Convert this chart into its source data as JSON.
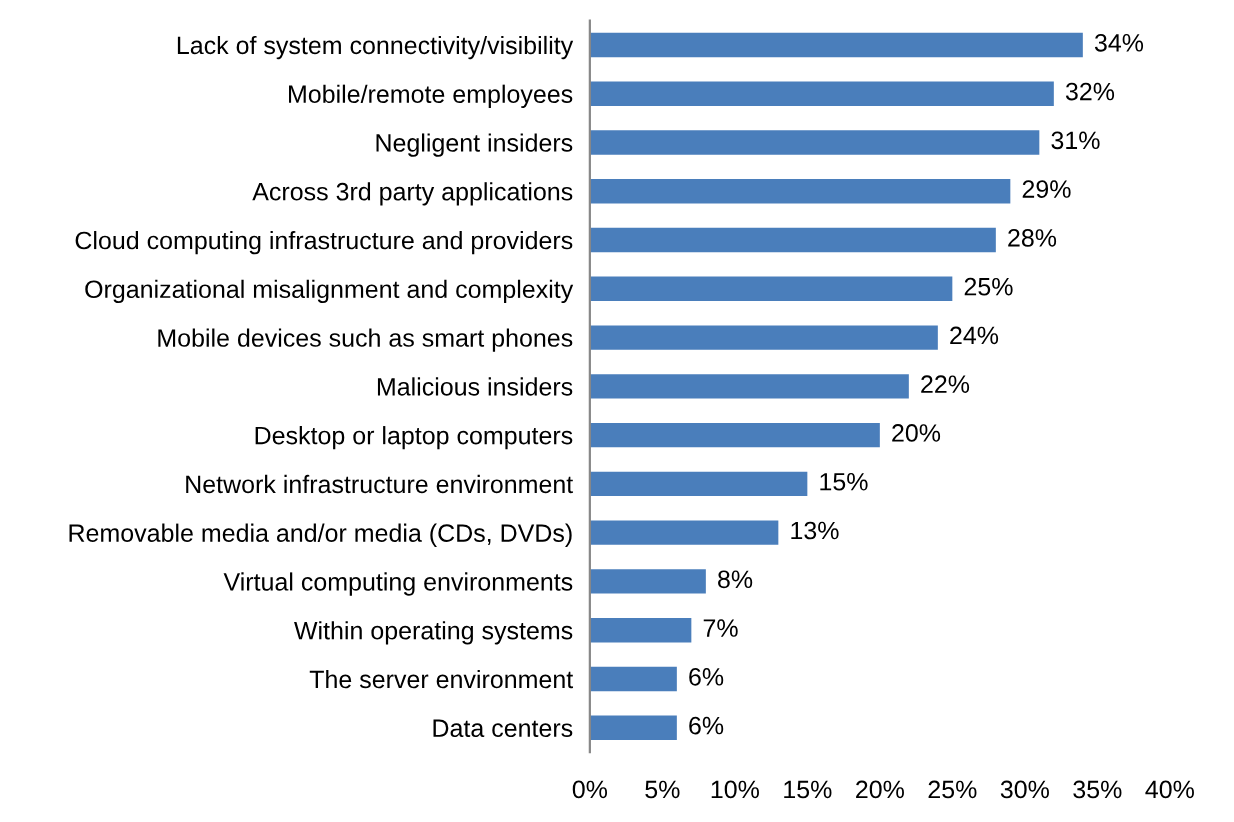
{
  "chart_data": {
    "type": "bar",
    "orientation": "horizontal",
    "categories": [
      "Lack of system connectivity/visibility",
      "Mobile/remote employees",
      "Negligent insiders",
      "Across 3rd party applications",
      "Cloud computing infrastructure and providers",
      "Organizational misalignment and complexity",
      "Mobile devices such as smart phones",
      "Malicious insiders",
      "Desktop or laptop computers",
      "Network infrastructure environment",
      "Removable media and/or media (CDs, DVDs)",
      "Virtual computing environments",
      "Within operating systems",
      "The server environment",
      "Data centers"
    ],
    "values": [
      34,
      32,
      31,
      29,
      28,
      25,
      24,
      22,
      20,
      15,
      13,
      8,
      7,
      6,
      6
    ],
    "value_labels": [
      "34%",
      "32%",
      "31%",
      "29%",
      "28%",
      "25%",
      "24%",
      "22%",
      "20%",
      "15%",
      "13%",
      "8%",
      "7%",
      "6%",
      "6%"
    ],
    "color": "#4a7ebb",
    "xlim": [
      0,
      40
    ],
    "xticks": [
      {
        "value": 0,
        "label": "0%"
      },
      {
        "value": 5,
        "label": "5%"
      },
      {
        "value": 10,
        "label": "10%"
      },
      {
        "value": 15,
        "label": "15%"
      },
      {
        "value": 20,
        "label": "20%"
      },
      {
        "value": 25,
        "label": "25%"
      },
      {
        "value": 30,
        "label": "30%"
      },
      {
        "value": 35,
        "label": "35%"
      },
      {
        "value": 40,
        "label": "40%"
      }
    ],
    "grid": false,
    "legend": false
  }
}
